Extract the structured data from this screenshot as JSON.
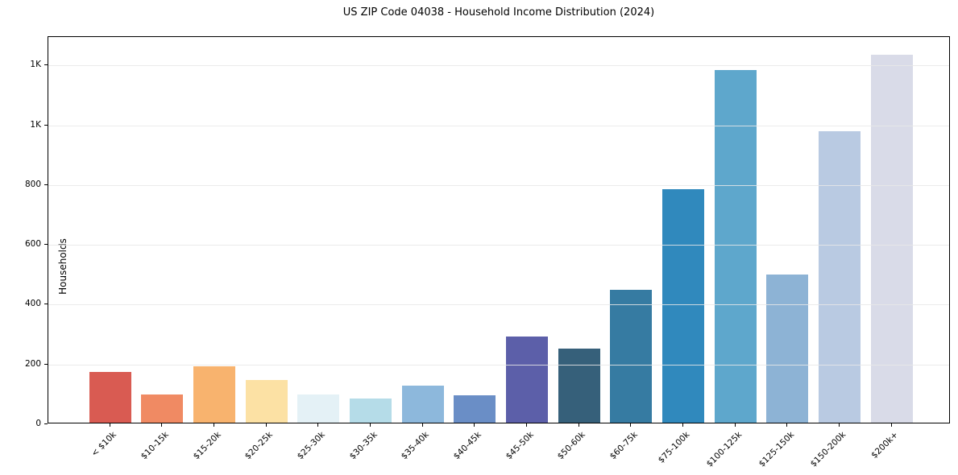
{
  "figure": {
    "title": "US ZIP Code 04038 - Household Income Distribution (2024)"
  },
  "chart_data": {
    "type": "bar",
    "title": "US ZIP Code 04038 - Household Income Distribution (2024)",
    "xlabel": "",
    "ylabel": "Households",
    "categories": [
      "< $10k",
      "$10-15k",
      "$15-20k",
      "$20-25k",
      "$25-30k",
      "$30-35k",
      "$35-40k",
      "$40-45k",
      "$45-50k",
      "$50-60k",
      "$60-75k",
      "$75-100k",
      "$100-125k",
      "$125-150k",
      "$150-200k",
      "$200k+"
    ],
    "values": [
      170,
      94,
      189,
      142,
      95,
      80,
      124,
      92,
      288,
      247,
      443,
      781,
      1178,
      495,
      974,
      1231
    ],
    "bar_colors": [
      "#d95b52",
      "#f08a63",
      "#f8b36e",
      "#fce1a4",
      "#e4f1f6",
      "#b5dce8",
      "#8db8dc",
      "#6a8ec6",
      "#5c5fa9",
      "#36607a",
      "#367ba2",
      "#3089bd",
      "#5ea7cc",
      "#8db3d5",
      "#b9cae2",
      "#d9dbe8"
    ],
    "ylim": [
      0,
      1295
    ],
    "yticks": {
      "values": [
        0,
        200,
        400,
        600,
        800,
        1000,
        1200
      ],
      "labels": [
        "0",
        "200",
        "400",
        "600",
        "800",
        "1K",
        "1K"
      ]
    },
    "grid": "horizontal",
    "legend": "none",
    "colors": {
      "background": "#ffffff",
      "spine": "#000000",
      "grid": "#e8e8e8",
      "text": "#000000"
    }
  }
}
